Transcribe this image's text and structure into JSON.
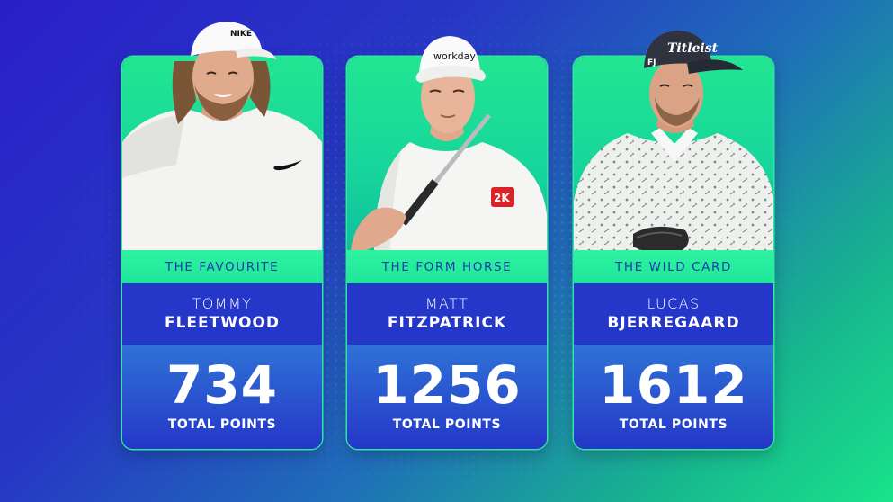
{
  "cards": [
    {
      "role": "THE FAVOURITE",
      "first_name": "TOMMY",
      "last_name": "FLEETWOOD",
      "points": "734",
      "points_label": "TOTAL POINTS",
      "cap_logo": "NIKE"
    },
    {
      "role": "THE FORM HORSE",
      "first_name": "MATT",
      "last_name": "FITZPATRICK",
      "points": "1256",
      "points_label": "TOTAL POINTS",
      "cap_logo": "workday",
      "chest_logo": "2K"
    },
    {
      "role": "THE WILD CARD",
      "first_name": "LUCAS",
      "last_name": "BJERREGAARD",
      "points": "1612",
      "points_label": "TOTAL POINTS",
      "cap_logo": "Titleist",
      "chest_logo": "FJ"
    }
  ],
  "colors": {
    "accent_green": "#2ef3a0",
    "panel_blue": "#2437c9",
    "label_text": "#1d3bb0"
  }
}
